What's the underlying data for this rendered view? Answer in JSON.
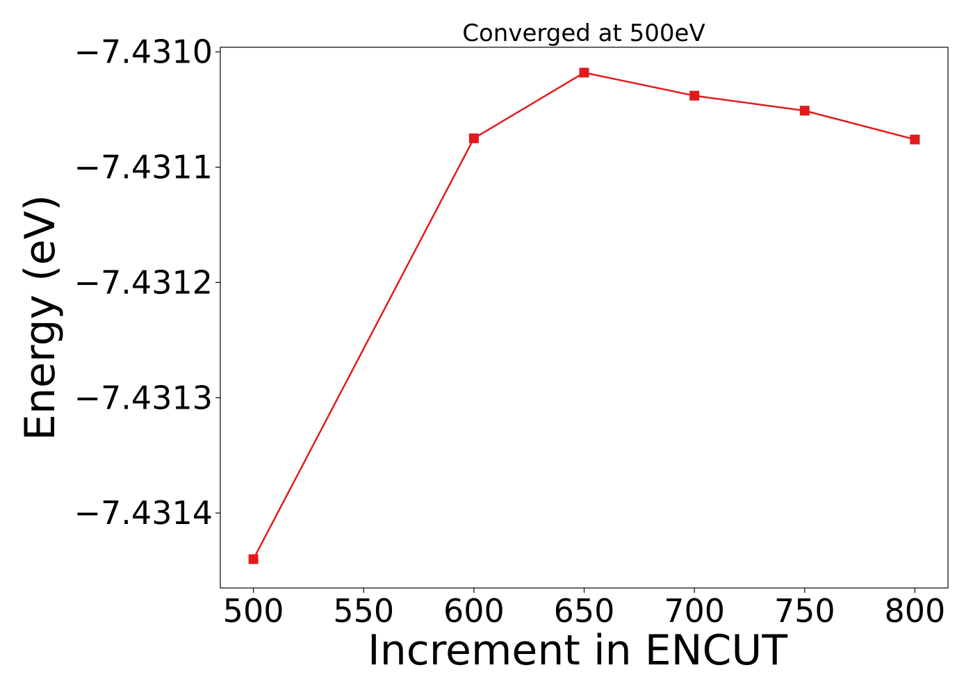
{
  "chart_data": {
    "type": "line",
    "title": "Converged at 500eV",
    "xlabel": "Increment in ENCUT",
    "ylabel": "Energy (eV)",
    "x": [
      500,
      600,
      650,
      700,
      750,
      800
    ],
    "series": [
      {
        "values": [
          -7.43144,
          -7.431075,
          -7.431018,
          -7.431038,
          -7.431051,
          -7.431076
        ]
      }
    ],
    "xlim": [
      485,
      815
    ],
    "ylim": [
      -7.431465,
      -7.430996
    ],
    "xticks": [
      500,
      550,
      600,
      650,
      700,
      750,
      800
    ],
    "xtick_labels": [
      "500",
      "550",
      "600",
      "650",
      "700",
      "750",
      "800"
    ],
    "yticks": [
      -7.431,
      -7.4311,
      -7.4312,
      -7.4313,
      -7.4314
    ],
    "ytick_labels": [
      "−7.4310",
      "−7.4311",
      "−7.4312",
      "−7.4313",
      "−7.4314"
    ],
    "marker": "square",
    "line_color": "#e31a1c",
    "grid": false,
    "legend": false
  }
}
